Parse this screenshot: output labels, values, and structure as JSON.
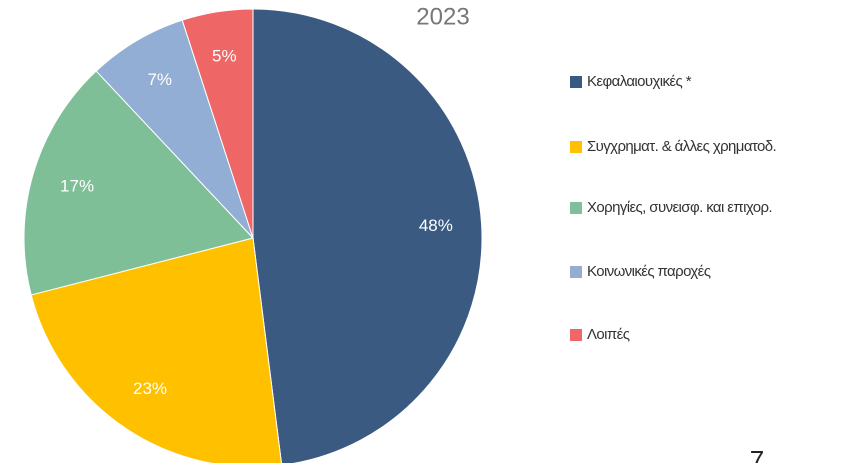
{
  "chart_data": {
    "type": "pie",
    "title": "2023",
    "categories": [
      "Κεφαλαιουχικές *",
      "Συγχρηματ. & άλλες χρηματοδ.",
      "Χορηγίες, συνεισφ. και επιχορ.",
      "Κοινωνικές παροχές",
      "Λοιπές"
    ],
    "values": [
      48,
      23,
      17,
      7,
      5
    ],
    "value_labels": [
      "48%",
      "23%",
      "17%",
      "7%",
      "5%"
    ],
    "colors": [
      "#3b5a82",
      "#ffc000",
      "#7fbf98",
      "#92aed4",
      "#ee6666"
    ],
    "legend": "right"
  },
  "page_number": "7"
}
